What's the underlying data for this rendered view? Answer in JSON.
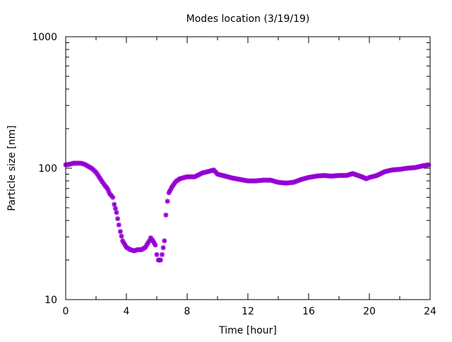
{
  "chart_data": {
    "type": "scatter",
    "title": "Modes location (3/19/19)",
    "xlabel": "Time [hour]",
    "ylabel": "Particle size [nm]",
    "xlim": [
      0,
      24
    ],
    "ylim": [
      10,
      1000
    ],
    "yscale": "log",
    "grid": false,
    "xticks": [
      0,
      4,
      8,
      12,
      16,
      20,
      24
    ],
    "xtick_labels": [
      "0",
      "4",
      "8",
      "12",
      "16",
      "20",
      "24"
    ],
    "yticks": [
      10,
      100,
      1000
    ],
    "ytick_labels": [
      "10",
      "100",
      "1000"
    ],
    "marker_color": "#9400d3",
    "series": [
      {
        "name": "mode",
        "x": [
          0,
          0.25,
          0.5,
          0.75,
          1,
          1.25,
          1.5,
          1.75,
          2,
          2.25,
          2.5,
          2.75,
          2.9,
          3.0,
          3.1,
          3.2,
          3.35,
          3.5,
          3.6,
          3.75,
          4,
          4.25,
          4.5,
          4.75,
          5,
          5.25,
          5.5,
          5.6,
          5.75,
          5.9,
          6.0,
          6.1,
          6.25,
          6.35,
          6.5,
          6.6,
          6.7,
          6.8,
          7,
          7.25,
          7.5,
          8,
          8.5,
          9,
          9.5,
          9.75,
          10,
          10.5,
          11,
          11.5,
          12,
          12.5,
          13,
          13.5,
          14,
          14.5,
          15,
          15.5,
          16,
          16.5,
          17,
          17.5,
          18,
          18.5,
          18.9,
          19.5,
          19.8,
          20,
          20.5,
          21,
          21.5,
          22,
          22.5,
          23,
          23.5,
          23.9
        ],
        "y": [
          106,
          107,
          109,
          109,
          109,
          107,
          103,
          99,
          93,
          84,
          76,
          70,
          64,
          62,
          60,
          53,
          46,
          37,
          33,
          28,
          25,
          24,
          23.5,
          24,
          24,
          25,
          28,
          29.5,
          28,
          26,
          22,
          20,
          20,
          22,
          28,
          44,
          56,
          65,
          72,
          79,
          83,
          86,
          86,
          92,
          95,
          97,
          90,
          87,
          84,
          82,
          80,
          80,
          81,
          81,
          78,
          77,
          78,
          82,
          85,
          87,
          88,
          87,
          88,
          88,
          91,
          86,
          83,
          85,
          88,
          94,
          97,
          98,
          100,
          101,
          104,
          106
        ]
      }
    ]
  }
}
